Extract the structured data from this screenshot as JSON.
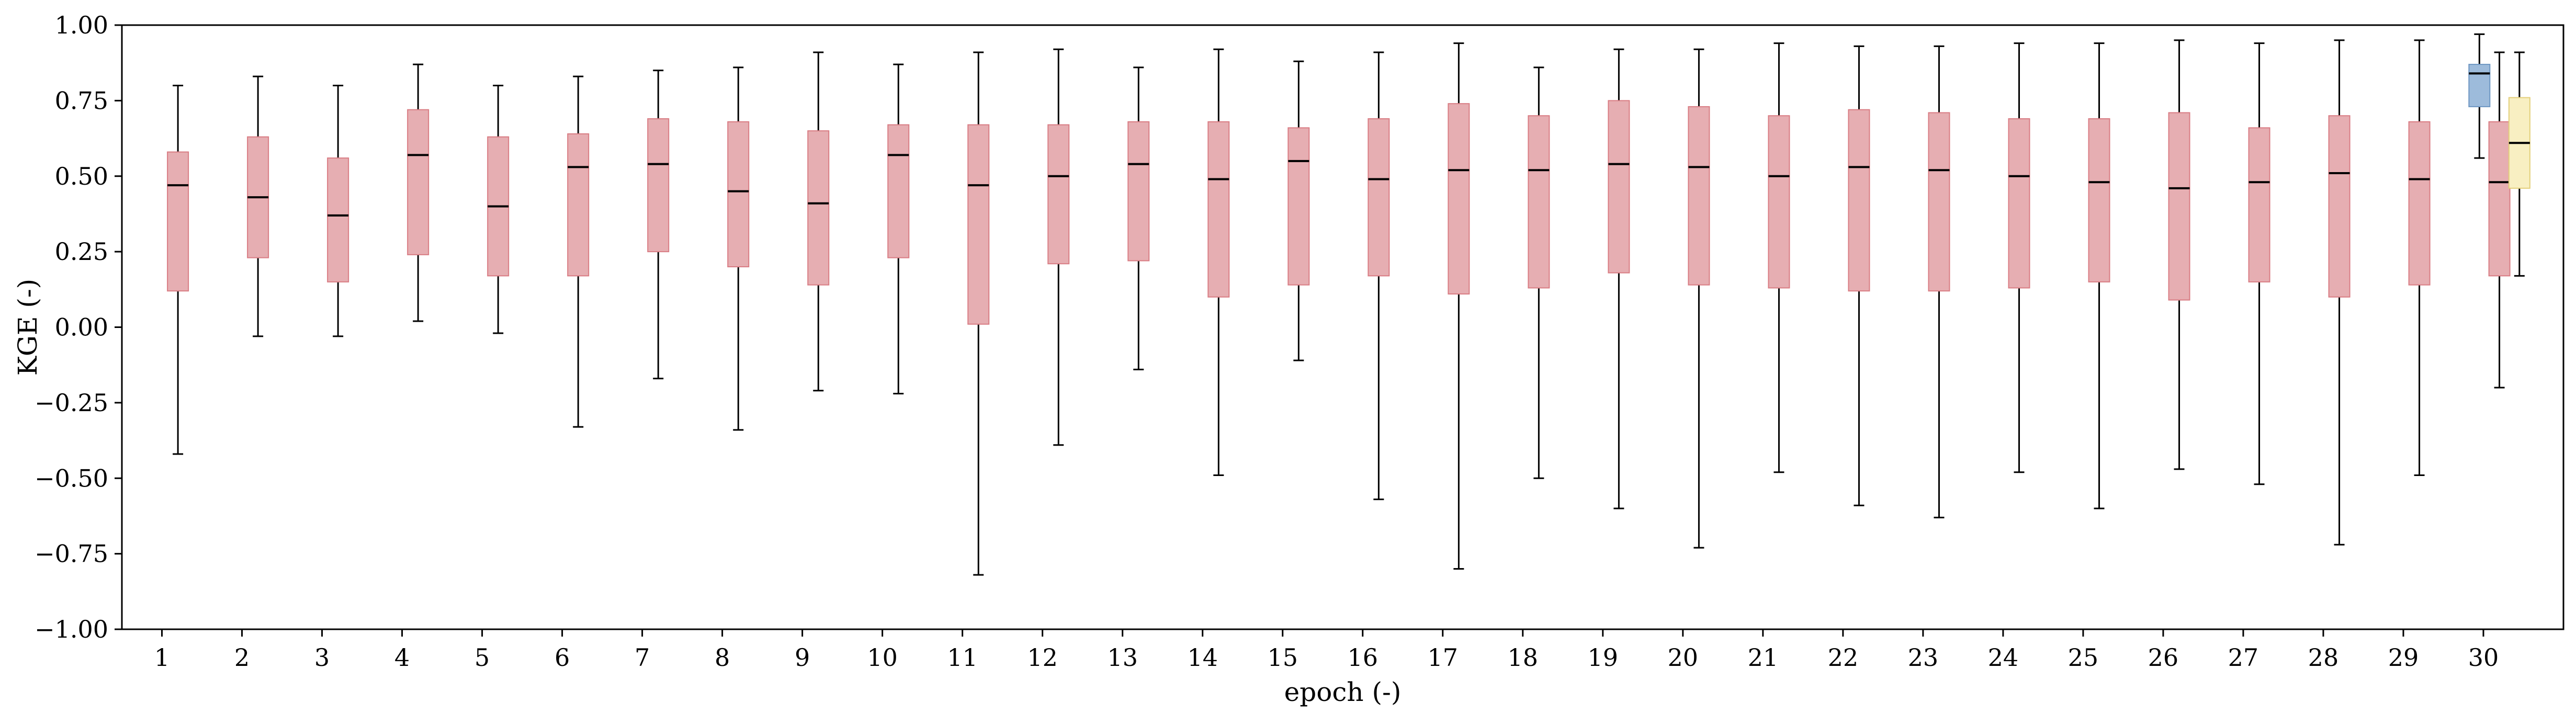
{
  "chart_data": {
    "type": "box",
    "xlabel": "epoch (-)",
    "ylabel": "KGE (-)",
    "ylim": [
      -1.0,
      1.0
    ],
    "xlim": [
      0.5,
      31.0
    ],
    "y_ticks": [
      -1.0,
      -0.75,
      -0.5,
      -0.25,
      0.0,
      0.25,
      0.5,
      0.75,
      1.0
    ],
    "y_tick_labels": [
      "−1.00",
      "−0.75",
      "−0.50",
      "−0.25",
      "0.00",
      "0.25",
      "0.50",
      "0.75",
      "1.00"
    ],
    "x_ticks": [
      1,
      2,
      3,
      4,
      5,
      6,
      7,
      8,
      9,
      10,
      11,
      12,
      13,
      14,
      15,
      16,
      17,
      18,
      19,
      20,
      21,
      22,
      23,
      24,
      25,
      26,
      27,
      28,
      29,
      30
    ],
    "x_tick_labels": [
      "1",
      "2",
      "3",
      "4",
      "5",
      "6",
      "7",
      "8",
      "9",
      "10",
      "11",
      "12",
      "13",
      "14",
      "15",
      "16",
      "17",
      "18",
      "19",
      "20",
      "21",
      "22",
      "23",
      "24",
      "25",
      "26",
      "27",
      "28",
      "29",
      "30"
    ],
    "grid": false,
    "colors": {
      "epoch_box": "#e6aeb2",
      "epoch_edge": "#d97d84",
      "blue_box": "#9dbbdb",
      "blue_edge": "#6d96c2",
      "yellow_box": "#f8efc2",
      "yellow_edge": "#e3cf7a",
      "median": "#000000",
      "whisker": "#000000"
    },
    "series": [
      {
        "color_key": "epoch",
        "boxes": [
          {
            "x": 1.2,
            "whislo": -0.42,
            "q1": 0.12,
            "med": 0.47,
            "q3": 0.58,
            "whishi": 0.8
          },
          {
            "x": 2.2,
            "whislo": -0.03,
            "q1": 0.23,
            "med": 0.43,
            "q3": 0.63,
            "whishi": 0.83
          },
          {
            "x": 3.2,
            "whislo": -0.03,
            "q1": 0.15,
            "med": 0.37,
            "q3": 0.56,
            "whishi": 0.8
          },
          {
            "x": 4.2,
            "whislo": 0.02,
            "q1": 0.24,
            "med": 0.57,
            "q3": 0.72,
            "whishi": 0.87
          },
          {
            "x": 5.2,
            "whislo": -0.02,
            "q1": 0.17,
            "med": 0.4,
            "q3": 0.63,
            "whishi": 0.8
          },
          {
            "x": 6.2,
            "whislo": -0.33,
            "q1": 0.17,
            "med": 0.53,
            "q3": 0.64,
            "whishi": 0.83
          },
          {
            "x": 7.2,
            "whislo": -0.17,
            "q1": 0.25,
            "med": 0.54,
            "q3": 0.69,
            "whishi": 0.85
          },
          {
            "x": 8.2,
            "whislo": -0.34,
            "q1": 0.2,
            "med": 0.45,
            "q3": 0.68,
            "whishi": 0.86
          },
          {
            "x": 9.2,
            "whislo": -0.21,
            "q1": 0.14,
            "med": 0.41,
            "q3": 0.65,
            "whishi": 0.91
          },
          {
            "x": 10.2,
            "whislo": -0.22,
            "q1": 0.23,
            "med": 0.57,
            "q3": 0.67,
            "whishi": 0.87
          },
          {
            "x": 11.2,
            "whislo": -0.82,
            "q1": 0.01,
            "med": 0.47,
            "q3": 0.67,
            "whishi": 0.91
          },
          {
            "x": 12.2,
            "whislo": -0.39,
            "q1": 0.21,
            "med": 0.5,
            "q3": 0.67,
            "whishi": 0.92
          },
          {
            "x": 13.2,
            "whislo": -0.14,
            "q1": 0.22,
            "med": 0.54,
            "q3": 0.68,
            "whishi": 0.86
          },
          {
            "x": 14.2,
            "whislo": -0.49,
            "q1": 0.1,
            "med": 0.49,
            "q3": 0.68,
            "whishi": 0.92
          },
          {
            "x": 15.2,
            "whislo": -0.11,
            "q1": 0.14,
            "med": 0.55,
            "q3": 0.66,
            "whishi": 0.88
          },
          {
            "x": 16.2,
            "whislo": -0.57,
            "q1": 0.17,
            "med": 0.49,
            "q3": 0.69,
            "whishi": 0.91
          },
          {
            "x": 17.2,
            "whislo": -0.8,
            "q1": 0.11,
            "med": 0.52,
            "q3": 0.74,
            "whishi": 0.94
          },
          {
            "x": 18.2,
            "whislo": -0.5,
            "q1": 0.13,
            "med": 0.52,
            "q3": 0.7,
            "whishi": 0.86
          },
          {
            "x": 19.2,
            "whislo": -0.6,
            "q1": 0.18,
            "med": 0.54,
            "q3": 0.75,
            "whishi": 0.92
          },
          {
            "x": 20.2,
            "whislo": -0.73,
            "q1": 0.14,
            "med": 0.53,
            "q3": 0.73,
            "whishi": 0.92
          },
          {
            "x": 21.2,
            "whislo": -0.48,
            "q1": 0.13,
            "med": 0.5,
            "q3": 0.7,
            "whishi": 0.94
          },
          {
            "x": 22.2,
            "whislo": -0.59,
            "q1": 0.12,
            "med": 0.53,
            "q3": 0.72,
            "whishi": 0.93
          },
          {
            "x": 23.2,
            "whislo": -0.63,
            "q1": 0.12,
            "med": 0.52,
            "q3": 0.71,
            "whishi": 0.93
          },
          {
            "x": 24.2,
            "whislo": -0.48,
            "q1": 0.13,
            "med": 0.5,
            "q3": 0.69,
            "whishi": 0.94
          },
          {
            "x": 25.2,
            "whislo": -0.6,
            "q1": 0.15,
            "med": 0.48,
            "q3": 0.69,
            "whishi": 0.94
          },
          {
            "x": 26.2,
            "whislo": -0.47,
            "q1": 0.09,
            "med": 0.46,
            "q3": 0.71,
            "whishi": 0.95
          },
          {
            "x": 27.2,
            "whislo": -0.52,
            "q1": 0.15,
            "med": 0.48,
            "q3": 0.66,
            "whishi": 0.94
          },
          {
            "x": 28.2,
            "whislo": -0.72,
            "q1": 0.1,
            "med": 0.51,
            "q3": 0.7,
            "whishi": 0.95
          },
          {
            "x": 29.2,
            "whislo": -0.49,
            "q1": 0.14,
            "med": 0.49,
            "q3": 0.68,
            "whishi": 0.95
          },
          {
            "x": 30.2,
            "whislo": -0.2,
            "q1": 0.17,
            "med": 0.48,
            "q3": 0.68,
            "whishi": 0.91
          }
        ]
      },
      {
        "color_key": "blue",
        "boxes": [
          {
            "x": 29.95,
            "whislo": 0.56,
            "q1": 0.73,
            "med": 0.84,
            "q3": 0.87,
            "whishi": 0.97
          }
        ]
      },
      {
        "color_key": "yellow",
        "boxes": [
          {
            "x": 30.45,
            "whislo": 0.17,
            "q1": 0.46,
            "med": 0.61,
            "q3": 0.76,
            "whishi": 0.91
          }
        ]
      }
    ]
  }
}
